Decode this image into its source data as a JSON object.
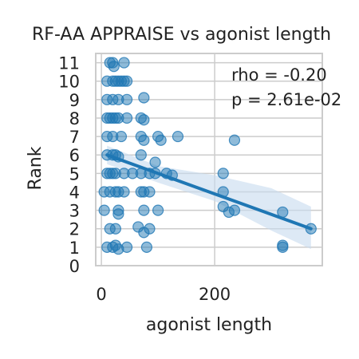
{
  "chart_data": {
    "type": "scatter",
    "title": "RF-AA APPRAISE vs agonist length",
    "xlabel": "agonist length",
    "ylabel": "Rank",
    "xlim": [
      -10,
      390
    ],
    "ylim": [
      0,
      11.5
    ],
    "x_ticks": [
      0,
      200
    ],
    "y_ticks": [
      0,
      1,
      2,
      3,
      4,
      5,
      6,
      7,
      8,
      9,
      10,
      11
    ],
    "grid": true,
    "annotation": {
      "rho": "rho = -0.20",
      "p": "p = 2.61e-02"
    },
    "colors": {
      "points": "#1f77b4",
      "line": "#1f77b4",
      "band": "#c6dbef",
      "grid": "#cccccc",
      "frame": "#cccccc"
    },
    "regression": {
      "x": [
        10,
        370
      ],
      "y": [
        6.0,
        2.0
      ]
    },
    "confidence_band": {
      "x": [
        10,
        100,
        200,
        300,
        370
      ],
      "upper": [
        6.5,
        5.4,
        4.9,
        4.2,
        3.2
      ],
      "lower": [
        5.5,
        4.5,
        3.5,
        1.9,
        0.9
      ]
    },
    "points": [
      [
        15,
        11
      ],
      [
        20,
        11
      ],
      [
        40,
        11
      ],
      [
        22,
        10.8
      ],
      [
        10,
        10
      ],
      [
        20,
        10
      ],
      [
        25,
        10
      ],
      [
        30,
        10
      ],
      [
        35,
        10
      ],
      [
        40,
        10
      ],
      [
        45,
        10
      ],
      [
        10,
        9
      ],
      [
        20,
        9
      ],
      [
        30,
        9
      ],
      [
        45,
        9
      ],
      [
        75,
        9.1
      ],
      [
        10,
        8
      ],
      [
        15,
        8
      ],
      [
        20,
        8
      ],
      [
        25,
        8
      ],
      [
        30,
        8
      ],
      [
        45,
        8
      ],
      [
        70,
        8
      ],
      [
        75,
        7.9
      ],
      [
        10,
        7
      ],
      [
        20,
        7
      ],
      [
        35,
        7
      ],
      [
        70,
        7
      ],
      [
        75,
        6.8
      ],
      [
        100,
        7
      ],
      [
        105,
        6.8
      ],
      [
        135,
        7
      ],
      [
        235,
        6.8
      ],
      [
        10,
        6
      ],
      [
        20,
        6
      ],
      [
        25,
        6
      ],
      [
        30,
        5.9
      ],
      [
        70,
        6
      ],
      [
        95,
        5.6
      ],
      [
        10,
        5
      ],
      [
        15,
        5
      ],
      [
        20,
        5
      ],
      [
        25,
        5
      ],
      [
        40,
        5
      ],
      [
        55,
        5
      ],
      [
        70,
        5
      ],
      [
        85,
        5
      ],
      [
        95,
        5
      ],
      [
        115,
        5
      ],
      [
        125,
        4.9
      ],
      [
        215,
        5
      ],
      [
        5,
        4
      ],
      [
        15,
        4
      ],
      [
        25,
        4
      ],
      [
        30,
        4
      ],
      [
        40,
        4
      ],
      [
        70,
        4
      ],
      [
        75,
        4
      ],
      [
        85,
        4
      ],
      [
        215,
        4
      ],
      [
        5,
        3
      ],
      [
        30,
        3
      ],
      [
        30,
        2.8
      ],
      [
        75,
        3
      ],
      [
        100,
        3
      ],
      [
        215,
        3.2
      ],
      [
        225,
        2.9
      ],
      [
        235,
        3
      ],
      [
        320,
        2.9
      ],
      [
        15,
        2
      ],
      [
        25,
        2
      ],
      [
        65,
        2.1
      ],
      [
        75,
        1.8
      ],
      [
        85,
        2
      ],
      [
        370,
        2
      ],
      [
        10,
        1
      ],
      [
        20,
        1
      ],
      [
        25,
        1.1
      ],
      [
        30,
        0.9
      ],
      [
        45,
        1
      ],
      [
        80,
        1
      ],
      [
        320,
        1
      ],
      [
        320,
        1.1
      ]
    ]
  }
}
